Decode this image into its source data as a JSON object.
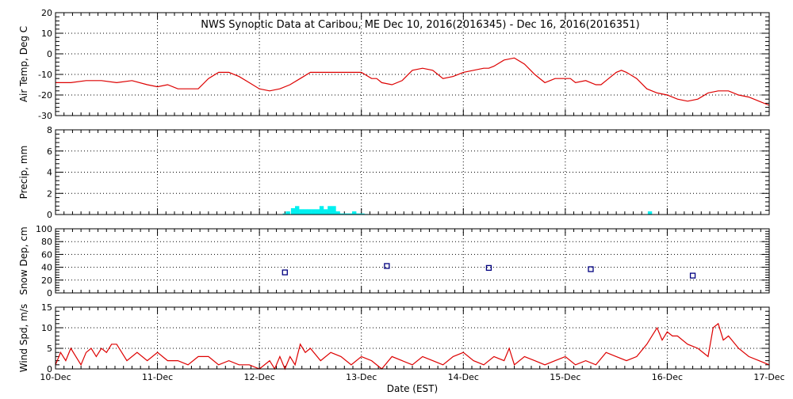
{
  "chart_data": {
    "type": "line",
    "title": "NWS Synoptic Data at Caribou, ME    Dec 10, 2016(2016345) - Dec 16, 2016(2016351)",
    "xlabel": "Date (EST)",
    "x_ticks": [
      "10-Dec",
      "11-Dec",
      "12-Dec",
      "13-Dec",
      "14-Dec",
      "15-Dec",
      "16-Dec",
      "17-Dec"
    ],
    "x_range_days": [
      0,
      7
    ],
    "grid": true,
    "colors": {
      "temp": "#dd0000",
      "precip": "#00f0f0",
      "snow": "#000080",
      "wind": "#dd0000",
      "axis": "#000000"
    },
    "panels": [
      {
        "id": "air-temp",
        "type": "line",
        "ylabel": "Air Temp, Deg C",
        "ylim": [
          -30,
          20
        ],
        "yticks": [
          -30,
          -20,
          -10,
          0,
          10,
          20
        ],
        "x": [
          0,
          0.15,
          0.3,
          0.45,
          0.6,
          0.75,
          0.9,
          1.0,
          1.1,
          1.2,
          1.3,
          1.4,
          1.5,
          1.6,
          1.7,
          1.8,
          1.9,
          2.0,
          2.1,
          2.2,
          2.3,
          2.4,
          2.5,
          2.55,
          2.6,
          2.75,
          2.9,
          3.0,
          3.1,
          3.15,
          3.2,
          3.3,
          3.4,
          3.5,
          3.6,
          3.7,
          3.8,
          3.9,
          4.0,
          4.1,
          4.2,
          4.25,
          4.3,
          4.4,
          4.5,
          4.6,
          4.7,
          4.8,
          4.85,
          4.9,
          5.0,
          5.05,
          5.1,
          5.2,
          5.25,
          5.3,
          5.35,
          5.4,
          5.5,
          5.55,
          5.6,
          5.7,
          5.8,
          5.9,
          6.0,
          6.1,
          6.2,
          6.3,
          6.4,
          6.5,
          6.6,
          6.7,
          6.8,
          6.9,
          7.0
        ],
        "y": [
          -14,
          -14,
          -13,
          -13,
          -14,
          -13,
          -15,
          -16,
          -15,
          -17,
          -17,
          -17,
          -12,
          -9,
          -9,
          -11,
          -14,
          -17,
          -18,
          -17,
          -15,
          -12,
          -9,
          -9,
          -9,
          -9,
          -9,
          -9,
          -12,
          -12,
          -14,
          -15,
          -13,
          -8,
          -7,
          -8,
          -12,
          -11,
          -9,
          -8,
          -7,
          -7,
          -6,
          -3,
          -2,
          -5,
          -10,
          -14,
          -13,
          -12,
          -12,
          -12,
          -14,
          -13,
          -14,
          -15,
          -15,
          -13,
          -9,
          -8,
          -9,
          -12,
          -17,
          -19,
          -20,
          -22,
          -23,
          -22,
          -19,
          -18,
          -18,
          -20,
          -21,
          -23,
          -25
        ]
      },
      {
        "id": "precip",
        "type": "bar",
        "ylabel": "Precip, mm",
        "ylim": [
          0,
          8
        ],
        "yticks": [
          0,
          2,
          4,
          6,
          8
        ],
        "x": [
          2.25,
          2.28,
          2.33,
          2.37,
          2.41,
          2.45,
          2.49,
          2.53,
          2.57,
          2.61,
          2.65,
          2.69,
          2.73,
          2.77,
          2.81,
          2.85,
          2.89,
          2.93,
          2.97,
          3.01,
          3.05,
          5.83
        ],
        "values": [
          0.1,
          0.3,
          0.6,
          0.8,
          0.5,
          0.5,
          0.5,
          0.5,
          0.5,
          0.8,
          0.5,
          0.8,
          0.8,
          0.3,
          0.1,
          0.1,
          0.1,
          0.3,
          0.1,
          0.1,
          0.05,
          0.3
        ]
      },
      {
        "id": "snow-depth",
        "type": "scatter",
        "ylabel": "Snow Dep, cm",
        "ylim": [
          0,
          100
        ],
        "yticks": [
          0,
          20,
          40,
          60,
          80,
          100
        ],
        "x": [
          2.25,
          3.25,
          4.25,
          5.25,
          6.25
        ],
        "y": [
          32,
          42,
          39,
          37,
          27
        ]
      },
      {
        "id": "wind-speed",
        "type": "line",
        "ylabel": "Wind Spd, m/s",
        "ylim": [
          0,
          15
        ],
        "yticks": [
          0,
          5,
          10,
          15
        ],
        "x": [
          0,
          0.05,
          0.1,
          0.15,
          0.2,
          0.25,
          0.3,
          0.35,
          0.4,
          0.45,
          0.5,
          0.55,
          0.6,
          0.7,
          0.8,
          0.9,
          1.0,
          1.1,
          1.2,
          1.3,
          1.4,
          1.5,
          1.6,
          1.7,
          1.8,
          1.9,
          2.0,
          2.1,
          2.15,
          2.2,
          2.25,
          2.3,
          2.35,
          2.4,
          2.45,
          2.5,
          2.6,
          2.7,
          2.8,
          2.9,
          3.0,
          3.1,
          3.2,
          3.3,
          3.4,
          3.5,
          3.6,
          3.7,
          3.8,
          3.9,
          4.0,
          4.1,
          4.2,
          4.3,
          4.4,
          4.45,
          4.5,
          4.6,
          4.7,
          4.8,
          4.9,
          5.0,
          5.1,
          5.2,
          5.3,
          5.4,
          5.5,
          5.6,
          5.7,
          5.8,
          5.85,
          5.9,
          5.95,
          6.0,
          6.05,
          6.1,
          6.2,
          6.3,
          6.4,
          6.45,
          6.5,
          6.55,
          6.6,
          6.7,
          6.8,
          6.9,
          7.0
        ],
        "y": [
          1,
          4,
          2,
          5,
          3,
          1,
          4,
          5,
          3,
          5,
          4,
          6,
          6,
          2,
          4,
          2,
          4,
          2,
          2,
          1,
          3,
          3,
          1,
          2,
          1,
          1,
          0,
          2,
          0,
          3,
          0,
          3,
          1,
          6,
          4,
          5,
          2,
          4,
          3,
          1,
          3,
          2,
          0,
          3,
          2,
          1,
          3,
          2,
          1,
          3,
          4,
          2,
          1,
          3,
          2,
          5,
          1,
          3,
          2,
          1,
          2,
          3,
          1,
          2,
          1,
          4,
          3,
          2,
          3,
          6,
          8,
          10,
          7,
          9,
          8,
          8,
          6,
          5,
          3,
          10,
          11,
          7,
          8,
          5,
          3,
          2,
          1
        ]
      }
    ]
  }
}
